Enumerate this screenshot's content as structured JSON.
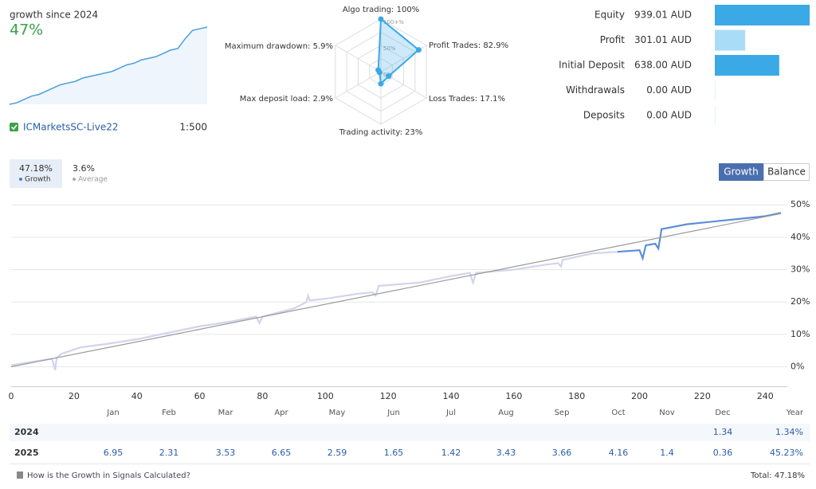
{
  "summary": {
    "caption": "growth since 2024",
    "growth": "47%",
    "account": "ICMarketsSC-Live22",
    "leverage": "1:500",
    "sparkline": {
      "type": "area",
      "color": "#4a9fdd",
      "ylim": [
        0,
        47
      ],
      "values": [
        0,
        1,
        3,
        5,
        6,
        8,
        10,
        12,
        13,
        14,
        16,
        17,
        18,
        19,
        20,
        22,
        24,
        25,
        27,
        28,
        29,
        31,
        33,
        34,
        40,
        45,
        46,
        47
      ]
    }
  },
  "radar": {
    "color": "#3aa9e6",
    "rlim": [
      0,
      100
    ],
    "ticks": [
      {
        "value": 100,
        "label": "100+%"
      },
      {
        "value": 50,
        "label": "50%"
      },
      {
        "value": 0,
        "label": "0%"
      }
    ],
    "axes": [
      {
        "label": "Algo trading: 100%",
        "value": 100
      },
      {
        "label": "Profit Trades: 82.9%",
        "value": 82.9
      },
      {
        "label": "Loss Trades: 17.1%",
        "value": 17.1
      },
      {
        "label": "Trading activity: 23%",
        "value": 23
      },
      {
        "label": "Max deposit load: 2.9%",
        "value": 2.9
      },
      {
        "label": "Maximum drawdown: 5.9%",
        "value": 5.9
      }
    ]
  },
  "balance": {
    "xlim": [
      0,
      939.01
    ],
    "items": [
      {
        "label": "Equity",
        "value": 939.01,
        "value_label": "939.01 AUD",
        "color": "#3aa9e6"
      },
      {
        "label": "Profit",
        "value": 301.01,
        "value_label": "301.01 AUD",
        "color": "#a9ddf7"
      },
      {
        "label": "Initial Deposit",
        "value": 638.0,
        "value_label": "638.00 AUD",
        "color": "#3aa9e6"
      },
      {
        "label": "Withdrawals",
        "value": 0,
        "value_label": "0.00 AUD",
        "color": "#a9ddf7"
      },
      {
        "label": "Deposits",
        "value": 0,
        "value_label": "0.00 AUD",
        "color": "#a9ddf7"
      }
    ]
  },
  "tabs": [
    {
      "value": "47.18%",
      "label": "Growth",
      "color": "#4a7fd0"
    },
    {
      "value": "3.6%",
      "label": "Average",
      "color": "#aaaaaa"
    }
  ],
  "buttons": [
    "Growth",
    "Balance"
  ],
  "chart_data": {
    "type": "line",
    "xlim": [
      0,
      245
    ],
    "ylim": [
      -6,
      53
    ],
    "xticks": [
      0,
      20,
      40,
      60,
      80,
      100,
      120,
      140,
      160,
      180,
      200,
      220,
      240
    ],
    "yticks": [
      {
        "value": 0,
        "label": "0%"
      },
      {
        "value": 10,
        "label": "10%"
      },
      {
        "value": 20,
        "label": "20%"
      },
      {
        "value": 30,
        "label": "30%"
      },
      {
        "value": 40,
        "label": "40%"
      },
      {
        "value": 50,
        "label": "50%"
      }
    ],
    "grid": true,
    "series": [
      {
        "color": "#d3d3ec",
        "x": [
          0,
          13,
          14,
          14.5,
          16,
          22,
          30,
          40,
          50,
          60,
          70,
          78,
          79,
          80,
          90,
          94,
          94.5,
          95,
          100,
          110,
          115,
          116,
          117,
          130,
          140,
          146,
          147,
          148,
          160,
          170,
          174,
          175,
          175.5,
          185,
          193
        ],
        "values": [
          0.5,
          2.5,
          -1,
          2.8,
          4,
          6,
          7,
          8.5,
          10.5,
          12.5,
          14,
          15.5,
          13.5,
          15.5,
          18,
          20,
          22,
          20.5,
          21,
          22.5,
          23,
          22,
          25,
          26,
          28,
          29,
          26,
          29,
          30,
          31.5,
          32,
          31,
          33,
          35,
          35.5
        ]
      },
      {
        "color": "#5b8fd6",
        "x": [
          193,
          200,
          201,
          202,
          205,
          206,
          207,
          215,
          225,
          235,
          240,
          245
        ],
        "values": [
          35.5,
          36,
          33.5,
          37.5,
          38,
          36.5,
          42.5,
          44,
          45,
          46,
          46.5,
          47.5
        ]
      },
      {
        "color": "#9a9a9a",
        "x": [
          0,
          245
        ],
        "values": [
          0,
          47.3
        ]
      }
    ]
  },
  "table": {
    "columns": [
      "Jan",
      "Feb",
      "Mar",
      "Apr",
      "May",
      "Jun",
      "Jul",
      "Aug",
      "Sep",
      "Oct",
      "Nov",
      "Dec",
      "Year"
    ],
    "rows": [
      {
        "year": "2024",
        "cells": [
          null,
          null,
          null,
          null,
          null,
          null,
          null,
          null,
          null,
          null,
          null,
          "1.34",
          "1.34%"
        ]
      },
      {
        "year": "2025",
        "cells": [
          "6.95",
          "2.31",
          "3.53",
          "6.65",
          "2.59",
          "1.65",
          "1.42",
          "3.43",
          "3.66",
          "4.16",
          "1.4",
          "0.36",
          "45.23%"
        ]
      }
    ]
  },
  "footer": {
    "link": "How is the Growth in Signals Calculated?",
    "total": "Total: 47.18%"
  }
}
